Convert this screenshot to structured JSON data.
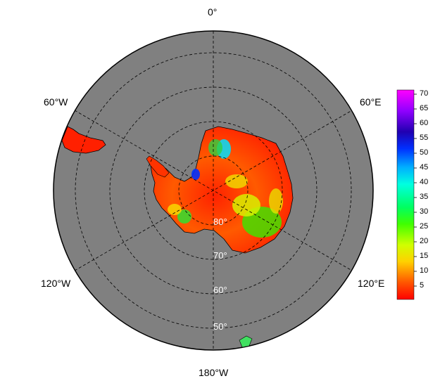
{
  "map": {
    "projection": "south polar stereographic",
    "ocean_color": "#808080",
    "longitude_labels": {
      "top": "0°",
      "upper_left": "60°W",
      "upper_right": "60°E",
      "lower_left": "120°W",
      "lower_right": "120°E",
      "bottom": "180°W"
    },
    "latitude_labels": [
      "80°",
      "70°",
      "60°",
      "50°"
    ]
  },
  "colorbar": {
    "ticks": [
      "70",
      "65",
      "60",
      "55",
      "50",
      "45",
      "40",
      "35",
      "30",
      "25",
      "20",
      "15",
      "10",
      "5"
    ],
    "colors": [
      "#ff0000",
      "#ff6a00",
      "#ffd000",
      "#c8ff00",
      "#40ff00",
      "#00ff60",
      "#00ffd0",
      "#00b0ff",
      "#0040ff",
      "#2000c0",
      "#8000ff",
      "#ff00ff"
    ]
  }
}
